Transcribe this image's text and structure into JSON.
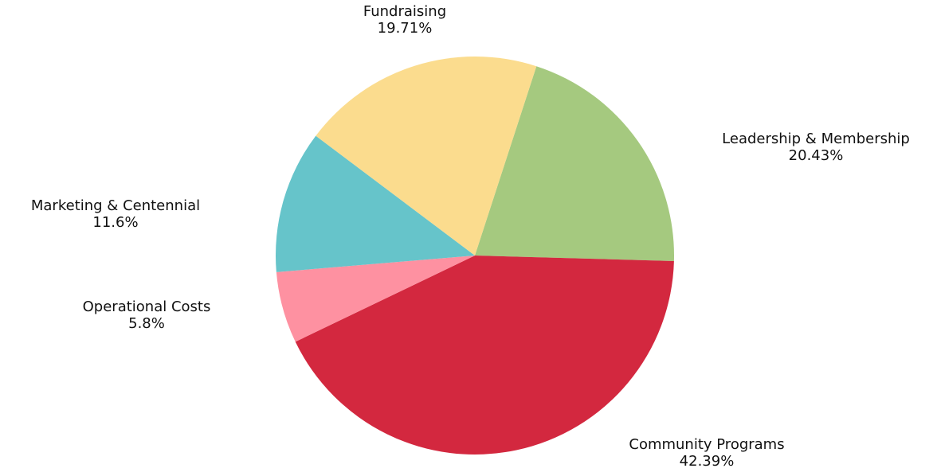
{
  "chart_data": {
    "type": "pie",
    "title": "",
    "legend": "none",
    "start_angle_deg": 18,
    "direction": "clockwise",
    "slices": [
      {
        "label": "Leadership & Membership",
        "value": 20.43,
        "display": "20.43%",
        "color": "#a5c97f"
      },
      {
        "label": "Community Programs",
        "value": 42.39,
        "display": "42.39%",
        "color": "#d3283f"
      },
      {
        "label": "Operational Costs",
        "value": 5.8,
        "display": "5.8%",
        "color": "#fe91a1"
      },
      {
        "label": "Marketing & Centennial",
        "value": 11.6,
        "display": "11.6%",
        "color": "#66c4ca"
      },
      {
        "label": "Fundraising",
        "value": 19.71,
        "display": "19.71%",
        "color": "#fbdc8e"
      }
    ]
  }
}
